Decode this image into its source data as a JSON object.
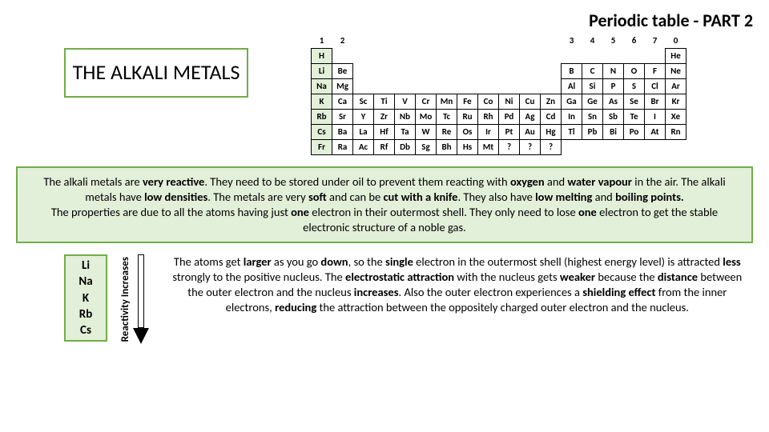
{
  "pageTitle": "Periodic table - PART 2",
  "heading": "THE ALKALI METALS",
  "colors": {
    "accent": "#70ad47",
    "accentLight": "#e2efd9",
    "text": "#000000",
    "bg": "#ffffff"
  },
  "periodicTable": {
    "groupNumbers": [
      "1",
      "2",
      "",
      "",
      "",
      "",
      "",
      "",
      "",
      "",
      "",
      "",
      "3",
      "4",
      "5",
      "6",
      "7",
      "0"
    ],
    "rows": [
      [
        "H",
        "",
        "",
        "",
        "",
        "",
        "",
        "",
        "",
        "",
        "",
        "",
        "",
        "",
        "",
        "",
        "",
        "He"
      ],
      [
        "Li",
        "Be",
        "",
        "",
        "",
        "",
        "",
        "",
        "",
        "",
        "",
        "",
        "B",
        "C",
        "N",
        "O",
        "F",
        "Ne"
      ],
      [
        "Na",
        "Mg",
        "",
        "",
        "",
        "",
        "",
        "",
        "",
        "",
        "",
        "",
        "Al",
        "Si",
        "P",
        "S",
        "Cl",
        "Ar"
      ],
      [
        "K",
        "Ca",
        "Sc",
        "Ti",
        "V",
        "Cr",
        "Mn",
        "Fe",
        "Co",
        "Ni",
        "Cu",
        "Zn",
        "Ga",
        "Ge",
        "As",
        "Se",
        "Br",
        "Kr"
      ],
      [
        "Rb",
        "Sr",
        "Y",
        "Zr",
        "Nb",
        "Mo",
        "Tc",
        "Ru",
        "Rh",
        "Pd",
        "Ag",
        "Cd",
        "In",
        "Sn",
        "Sb",
        "Te",
        "I",
        "Xe"
      ],
      [
        "Cs",
        "Ba",
        "La",
        "Hf",
        "Ta",
        "W",
        "Re",
        "Os",
        "Ir",
        "Pt",
        "Au",
        "Hg",
        "Tl",
        "Pb",
        "Bi",
        "Po",
        "At",
        "Rn"
      ],
      [
        "Fr",
        "Ra",
        "Ac",
        "Rf",
        "Db",
        "Sg",
        "Bh",
        "Hs",
        "Mt",
        "?",
        "?",
        "?",
        "",
        "",
        "",
        "",
        "",
        ""
      ]
    ],
    "highlightColumn": 0
  },
  "alkaliList": [
    "Li",
    "Na",
    "K",
    "Rb",
    "Cs"
  ],
  "reactivityLabel": "Reactivity Increases",
  "descSegments": [
    {
      "t": "The alkali metals are ",
      "b": false
    },
    {
      "t": "very reactive",
      "b": true
    },
    {
      "t": ". They need to be stored under oil to prevent them reacting with ",
      "b": false
    },
    {
      "t": "oxygen",
      "b": true
    },
    {
      "t": " and ",
      "b": false
    },
    {
      "t": "water vapour",
      "b": true
    },
    {
      "t": " in the air. The alkali metals have ",
      "b": false
    },
    {
      "t": "low densities",
      "b": true
    },
    {
      "t": ". The metals are very ",
      "b": false
    },
    {
      "t": "soft",
      "b": true
    },
    {
      "t": " and can be ",
      "b": false
    },
    {
      "t": "cut with a knife",
      "b": true
    },
    {
      "t": ". They also have ",
      "b": false
    },
    {
      "t": "low melting",
      "b": true
    },
    {
      "t": " and ",
      "b": false
    },
    {
      "t": "boiling points.",
      "b": true
    },
    {
      "t": "\nThe properties are due to all the atoms having just ",
      "b": false
    },
    {
      "t": "one",
      "b": true
    },
    {
      "t": " electron in their outermost shell. They only need to lose ",
      "b": false
    },
    {
      "t": "one",
      "b": true
    },
    {
      "t": " electron to get the stable electronic structure of a noble gas.",
      "b": false
    }
  ],
  "bottomSegments": [
    {
      "t": "The atoms get ",
      "b": false
    },
    {
      "t": "larger",
      "b": true
    },
    {
      "t": " as you go ",
      "b": false
    },
    {
      "t": "down",
      "b": true
    },
    {
      "t": ", so the ",
      "b": false
    },
    {
      "t": "single",
      "b": true
    },
    {
      "t": " electron in the outermost shell (highest energy level) is attracted ",
      "b": false
    },
    {
      "t": "less",
      "b": true
    },
    {
      "t": " strongly to the positive nucleus. The ",
      "b": false
    },
    {
      "t": "electrostatic attraction",
      "b": true
    },
    {
      "t": " with the nucleus gets ",
      "b": false
    },
    {
      "t": "weaker",
      "b": true
    },
    {
      "t": " because the ",
      "b": false
    },
    {
      "t": "distance",
      "b": true
    },
    {
      "t": " between the outer electron and the nucleus ",
      "b": false
    },
    {
      "t": "increases",
      "b": true
    },
    {
      "t": ". Also the outer electron experiences a ",
      "b": false
    },
    {
      "t": "shielding effect",
      "b": true
    },
    {
      "t": " from the inner electrons, ",
      "b": false
    },
    {
      "t": "reducing",
      "b": true
    },
    {
      "t": " the attraction between the oppositely charged outer electron and the nucleus.",
      "b": false
    }
  ]
}
